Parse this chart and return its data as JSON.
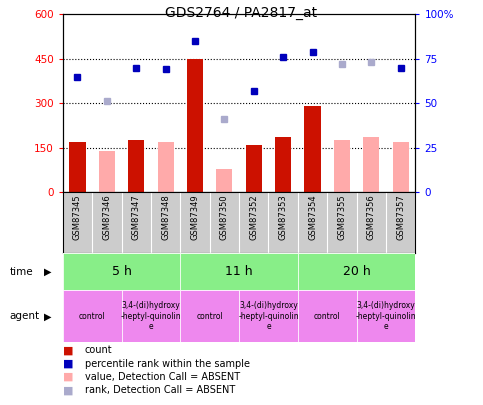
{
  "title": "GDS2764 / PA2817_at",
  "samples": [
    "GSM87345",
    "GSM87346",
    "GSM87347",
    "GSM87348",
    "GSM87349",
    "GSM87350",
    "GSM87352",
    "GSM87353",
    "GSM87354",
    "GSM87355",
    "GSM87356",
    "GSM87357"
  ],
  "count_values": [
    170,
    null,
    175,
    null,
    450,
    null,
    160,
    185,
    290,
    null,
    null,
    null
  ],
  "absent_value_bars": [
    null,
    140,
    null,
    170,
    null,
    80,
    null,
    null,
    null,
    175,
    185,
    170
  ],
  "rank_dots_present_pct": [
    65,
    null,
    70,
    69,
    85,
    null,
    57,
    76,
    79,
    null,
    null,
    70
  ],
  "rank_dots_absent_pct": [
    null,
    51,
    null,
    null,
    null,
    41,
    null,
    null,
    null,
    72,
    73,
    null
  ],
  "ylim_left": [
    0,
    600
  ],
  "ylim_right": [
    0,
    100
  ],
  "yticks_left": [
    0,
    150,
    300,
    450,
    600
  ],
  "yticks_right": [
    0,
    25,
    50,
    75,
    100
  ],
  "ytick_labels_right": [
    "0",
    "25",
    "50",
    "75",
    "100%"
  ],
  "hlines": [
    150,
    300,
    450
  ],
  "time_groups": [
    {
      "label": "5 h",
      "start": 0,
      "end": 4
    },
    {
      "label": "11 h",
      "start": 4,
      "end": 8
    },
    {
      "label": "20 h",
      "start": 8,
      "end": 12
    }
  ],
  "agent_groups": [
    {
      "label": "control",
      "start": 0,
      "end": 2
    },
    {
      "label": "3,4-(di)hydroxy\n-heptyl-quinolin\ne",
      "start": 2,
      "end": 4
    },
    {
      "label": "control",
      "start": 4,
      "end": 6
    },
    {
      "label": "3,4-(di)hydroxy\n-heptyl-quinolin\ne",
      "start": 6,
      "end": 8
    },
    {
      "label": "control",
      "start": 8,
      "end": 10
    },
    {
      "label": "3,4-(di)hydroxy\n-heptyl-quinolin\ne",
      "start": 10,
      "end": 12
    }
  ],
  "bar_color_present": "#cc1100",
  "bar_color_absent": "#ffaaaa",
  "dot_color_present": "#0000bb",
  "dot_color_absent": "#aaaacc",
  "time_bg_color": "#88ee88",
  "agent_bg_color": "#ee88ee",
  "sample_bg_color": "#cccccc",
  "bg_color": "#ffffff"
}
